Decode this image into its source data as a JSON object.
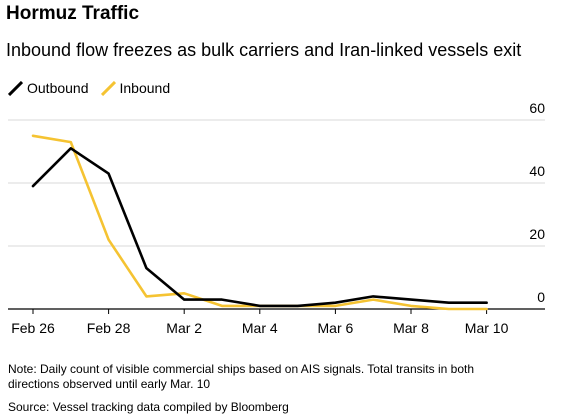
{
  "header": {
    "title": "Hormuz Traffic",
    "subtitle": "Inbound flow freezes as bulk carriers and Iran-linked vessels exit"
  },
  "footer": {
    "note": "Note: Daily count of visible commercial ships based on AIS signals. Total transits in both directions observed until early Mar. 10",
    "source": "Source: Vessel tracking data compiled by Bloomberg"
  },
  "chart_data": {
    "type": "line",
    "x": [
      "Feb 26",
      "Feb 27",
      "Feb 28",
      "Mar 1",
      "Mar 2",
      "Mar 3",
      "Mar 4",
      "Mar 5",
      "Mar 6",
      "Mar 7",
      "Mar 8",
      "Mar 9",
      "Mar 10"
    ],
    "x_tick_labels": [
      "Feb 26",
      "Feb 28",
      "Mar 2",
      "Mar 4",
      "Mar 6",
      "Mar 8",
      "Mar 10"
    ],
    "y_ticks": [
      0,
      20,
      40,
      60
    ],
    "ylim": [
      0,
      60
    ],
    "grid": true,
    "legend_position": "top-left",
    "series": [
      {
        "name": "Outbound",
        "color": "#000000",
        "values": [
          39,
          51,
          43,
          13,
          3,
          3,
          1,
          1,
          2,
          4,
          3,
          2,
          2
        ]
      },
      {
        "name": "Inbound",
        "color": "#f5c332",
        "values": [
          55,
          53,
          22,
          4,
          5,
          1,
          1,
          1,
          1,
          3,
          1,
          0,
          0
        ]
      }
    ]
  }
}
